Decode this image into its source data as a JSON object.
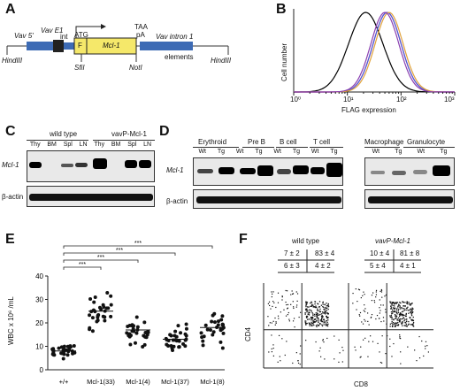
{
  "panels": {
    "A": {
      "label": "A",
      "vav5": "Vav 5'",
      "e1": "Vav E1",
      "int": "int",
      "atg": "ATG",
      "f": "F",
      "mcl1": "Mcl-1",
      "taa": "TAA",
      "pa": "pA",
      "intron": "Vav intron 1",
      "elements": "elements",
      "hind_left": "HindIII",
      "sfii": "SfiI",
      "noti": "NotI",
      "hind_right": "HindIII"
    },
    "B": {
      "label": "B",
      "ylabel": "Cell number",
      "xlabel": "FLAG expression",
      "ticks": [
        "10⁰",
        "10¹",
        "10²",
        "10³"
      ],
      "colors": [
        "#000000",
        "#e14a8f",
        "#4a5bd6",
        "#e0a33a",
        "#8a3fb0",
        "#2a7fa8"
      ]
    },
    "C": {
      "label": "C",
      "wt": "wild type",
      "tg": "vavP-Mcl-1",
      "lanes": [
        "Thy",
        "BM",
        "Spl",
        "LN",
        "Thy",
        "BM",
        "Spl",
        "LN"
      ],
      "row1": "Mcl-1",
      "row2": "β-actin"
    },
    "D": {
      "label": "D",
      "groups": [
        "Erythroid",
        "Pre B",
        "B cell",
        "T cell",
        "Macrophage",
        "Granulocyte"
      ],
      "wt": "Wt",
      "tg": "Tg",
      "row1": "Mcl-1",
      "row2": "β-actin"
    },
    "E": {
      "label": "E",
      "ylabel": "WBC x 10⁶ /mL",
      "yticks": [
        "0",
        "10",
        "20",
        "30",
        "40"
      ],
      "categories": [
        "+/+",
        "Mcl-1(33)",
        "Mcl-1(4)",
        "Mcl-1(37)",
        "Mcl-1(8)"
      ],
      "means": [
        8,
        25,
        17,
        13,
        18
      ],
      "sig": "***"
    },
    "F": {
      "label": "F",
      "wt_title": "wild type",
      "tg_title": "vavP-Mcl-1",
      "wt_q": [
        "7 ± 2",
        "83 ± 4",
        "6 ± 3",
        "4 ± 2"
      ],
      "tg_q": [
        "10 ± 4",
        "81 ± 8",
        "5 ± 4",
        "4 ± 1"
      ],
      "ylabel": "CD4",
      "xlabel": "CD8"
    }
  },
  "chart_data": [
    {
      "type": "line",
      "title": "",
      "xlabel": "FLAG expression",
      "ylabel": "Cell number",
      "xscale": "log",
      "xlim": [
        1,
        1000
      ],
      "series": [
        {
          "color": "#000000",
          "peak_x": 22
        },
        {
          "color": "#e14a8f",
          "peak_x": 55
        },
        {
          "color": "#4a5bd6",
          "peak_x": 55
        },
        {
          "color": "#e0a33a",
          "peak_x": 60
        },
        {
          "color": "#8a3fb0",
          "peak_x": 50
        }
      ]
    },
    {
      "type": "scatter",
      "title": "",
      "ylabel": "WBC x 10⁶ /mL",
      "ylim": [
        0,
        40
      ],
      "categories": [
        "+/+",
        "Mcl-1(33)",
        "Mcl-1(4)",
        "Mcl-1(37)",
        "Mcl-1(8)"
      ],
      "means": [
        8,
        25,
        17,
        13,
        18
      ],
      "significance": [
        "***",
        "***",
        "***",
        "***"
      ]
    }
  ]
}
